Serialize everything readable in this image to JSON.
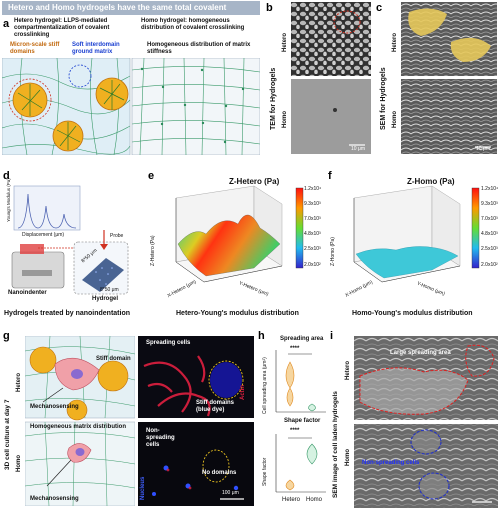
{
  "panel_a": {
    "letter": "a",
    "banner": "Hetero and Homo hydrogels have the same total covalent crosslinking",
    "hetero_title": "Hetero hydrogel: LLPS-mediated compartmentalization of covalent crosslinking",
    "homo_title": "Homo hydrogel: homogeneous distribution of covalent crosslinking",
    "stiff_domains": "Micron-scale stiff domains",
    "soft_matrix": "Soft interdomain ground matrix",
    "homo_stiffness": "Homogeneous distribution of matrix stiffness"
  },
  "panel_b": {
    "letter": "b",
    "side_label": "TEM for Hydrogels",
    "row_top": "Hetero",
    "row_bottom": "Homo",
    "scale": "10 μm"
  },
  "panel_c": {
    "letter": "c",
    "side_label": "SEM for Hydrogels",
    "row_top": "Hetero",
    "row_bottom": "Homo",
    "scale": "10 μm"
  },
  "panel_d": {
    "letter": "d",
    "ylabel": "Young's Modulus (Pa)",
    "xlabel": "Displacement (μm)",
    "probe": "Probe",
    "area_w": "8*50 μm",
    "area_h": "8*50 μm",
    "nanoindenter": "Nanoindenter",
    "hydrogel": "Hydrogel",
    "caption": "Hydrogels treated by nanoindentation"
  },
  "panel_e": {
    "letter": "e",
    "title": "Z-Hetero (Pa)",
    "zaxis": "Z-Hetero (Pa)",
    "xaxis": "X-Hetero (μm)",
    "yaxis": "Y-Hetero (μm)",
    "caption": "Hetero-Young's modulus distribution",
    "colorbar": [
      "1.2x10⁴",
      "9.3x10³",
      "7.0x10³",
      "4.8x10³",
      "2.5x10³",
      "2.0x10²"
    ]
  },
  "panel_f": {
    "letter": "f",
    "title": "Z-Homo (Pa)",
    "zaxis": "Z-Homo (Pa)",
    "xaxis": "X-Homo (μm)",
    "yaxis": "Y-Homo (μm)",
    "caption": "Homo-Young's modulus distribution",
    "colorbar": [
      "1.2x10⁴",
      "9.3x10³",
      "7.0x10³",
      "4.8x10³",
      "2.5x10³",
      "2.0x10²"
    ]
  },
  "panel_g": {
    "letter": "g",
    "side_label": "3D cell culture at day 7",
    "row_top": "Hetero",
    "row_bottom": "Homo",
    "stiff_domain": "Stiff domain",
    "mechanosensing_top": "Mechanosensing",
    "homogeneous": "Homogeneous matrix distribution",
    "mechanosensing_bottom": "Mechanosensing",
    "spreading": "Spreading cells",
    "actin": "Actin",
    "stiff_domains_dye": "Stiff domains (blue dye)",
    "non_spreading": "Non-spreading cells",
    "no_domains": "No domains",
    "nucleus": "Nucleus",
    "scale": "100 μm"
  },
  "panel_h": {
    "letter": "h",
    "top_title": "Spreading area",
    "top_ylabel": "Cell spreading area (μm²)",
    "top_sig": "****",
    "bottom_title": "Shape factor",
    "bottom_ylabel": "Shape factor",
    "bottom_sig": "****",
    "groups": [
      "Hetero",
      "Homo"
    ]
  },
  "panel_i": {
    "letter": "i",
    "side_label": "SEM image of cell laden hydrogels",
    "row_top": "Hetero",
    "row_bottom": "Homo",
    "large_area": "Large spreading area",
    "non_spreading": "Non-spreading cells"
  },
  "colors": {
    "banner": "#a7b5c7",
    "matrix_green": "#3a9a6a",
    "domain_orange": "#e8a030",
    "soft_blue": "#1a3fd0",
    "stiff_red": "#d03020",
    "actin_red": "#e02040",
    "nucleus_blue": "#2040ff"
  }
}
